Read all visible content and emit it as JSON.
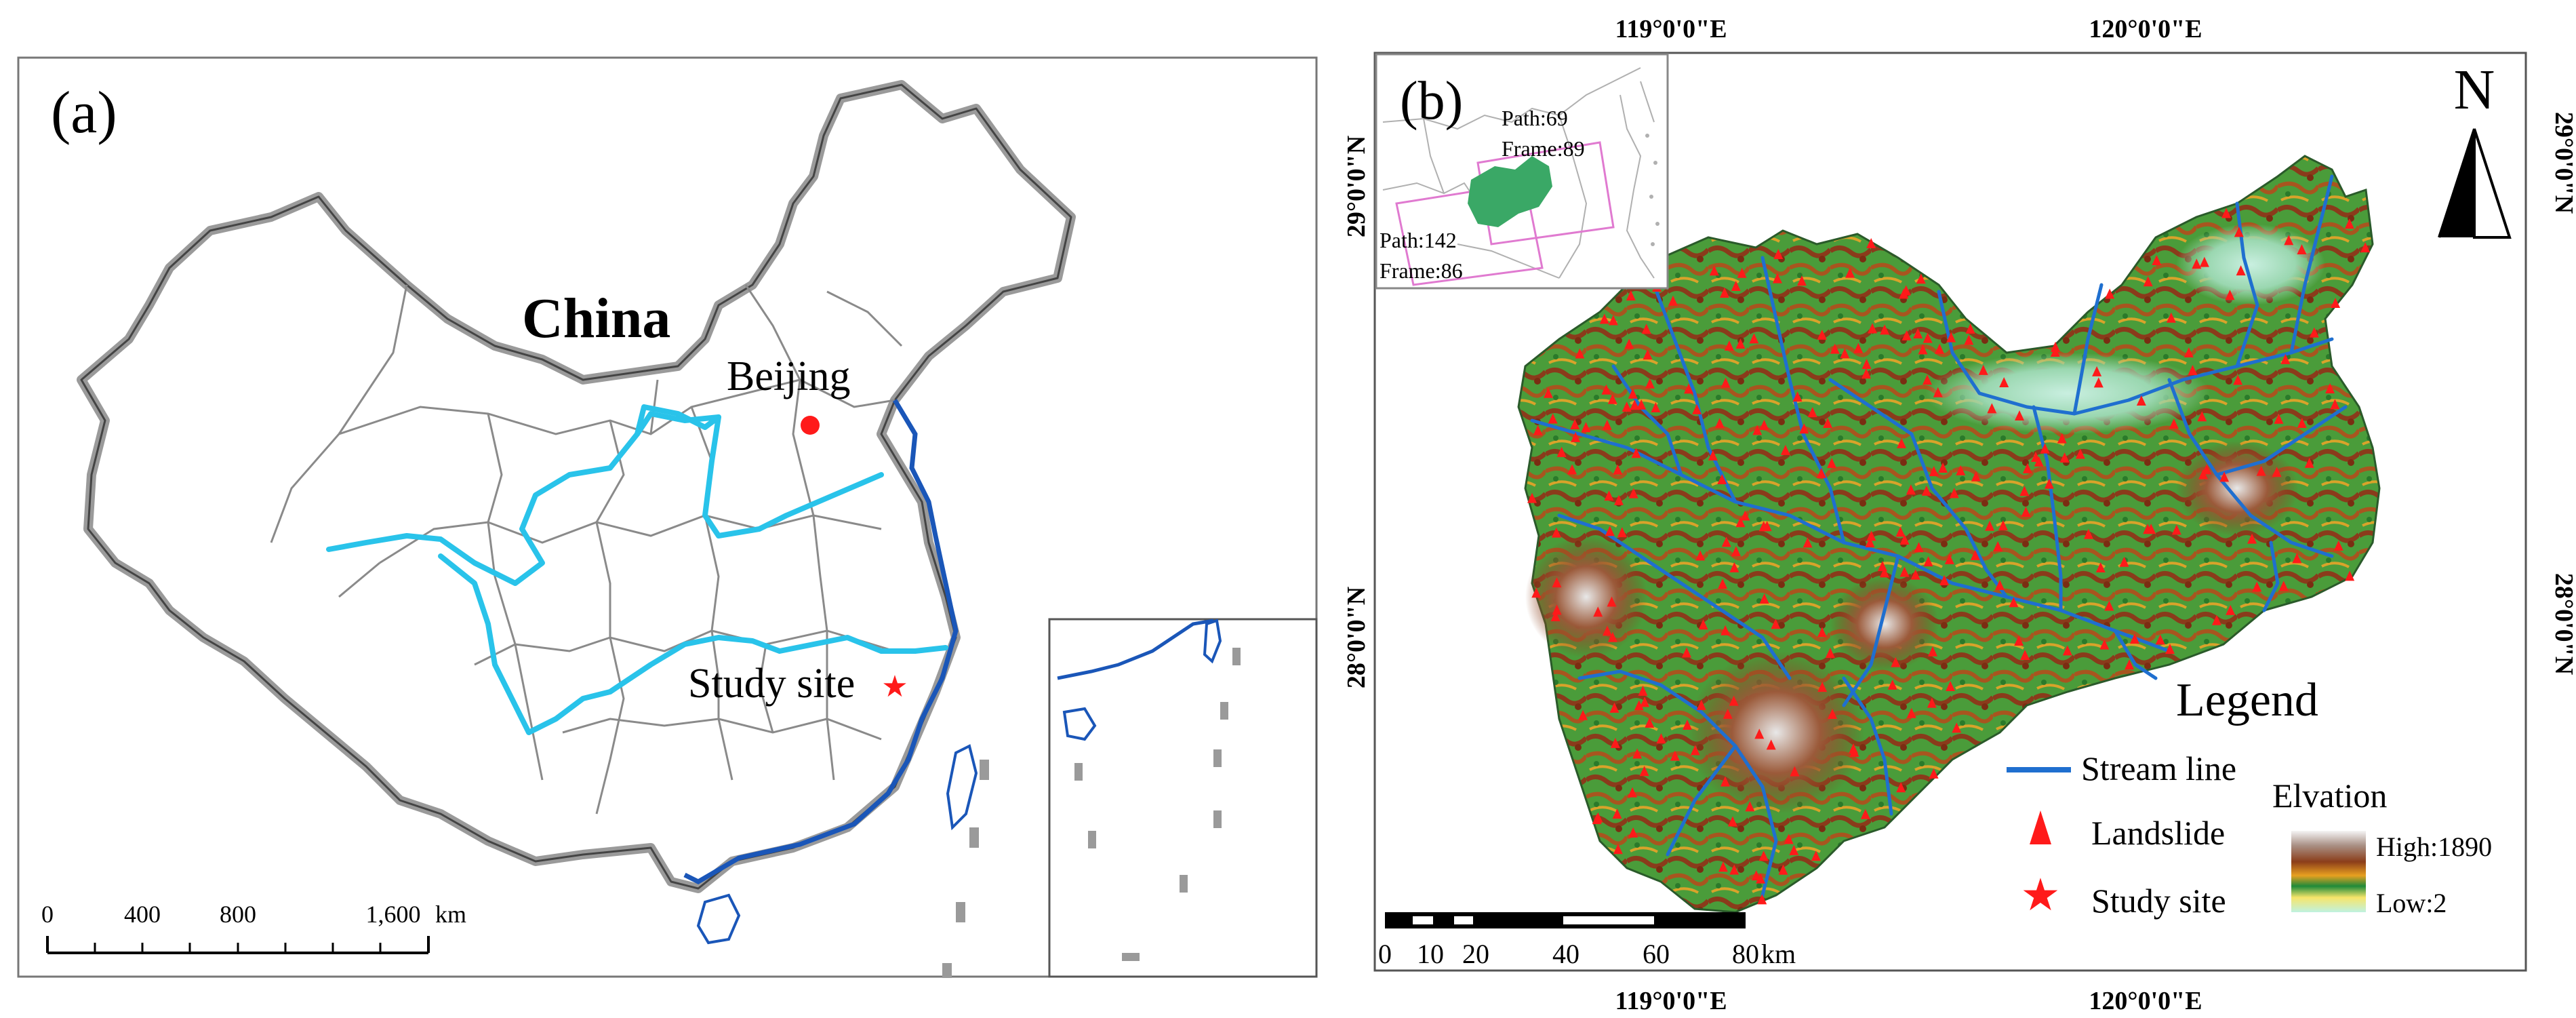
{
  "panel_a": {
    "label": "(a)",
    "country": "China",
    "capital": "Beijing",
    "study_site": "Study site",
    "scale": {
      "ticks": [
        "0",
        "400",
        "800",
        "1,600"
      ],
      "unit": "km"
    }
  },
  "panel_b": {
    "label": "(b)",
    "north": "N",
    "inset": {
      "path1": "Path:69",
      "frame1": "Frame:89",
      "path2": "Path:142",
      "frame2": "Frame:86"
    },
    "coords": {
      "top": [
        "119°0'0\"E",
        "120°0'0\"E"
      ],
      "bottom": [
        "119°0'0\"E",
        "120°0'0\"E"
      ],
      "left": [
        "29°0'0\"N",
        "28°0'0\"N"
      ],
      "right": [
        "29°0'0\"N",
        "28°0'0\"N"
      ]
    },
    "legend": {
      "title": "Legend",
      "stream": "Stream line",
      "landslide": "Landslide",
      "study_site": "Study site",
      "elevation_title": "Elvation",
      "high": "High:1890",
      "low": "Low:2"
    },
    "scale": {
      "ticks": [
        "0",
        "10",
        "20",
        "40",
        "60",
        "80"
      ],
      "unit": "km"
    }
  },
  "colors": {
    "river": "#29c3ea",
    "coast": "#1a56b8",
    "stream": "#1f6fcf",
    "landslide": "#ff1a1a",
    "green_area": "#3aa866"
  }
}
